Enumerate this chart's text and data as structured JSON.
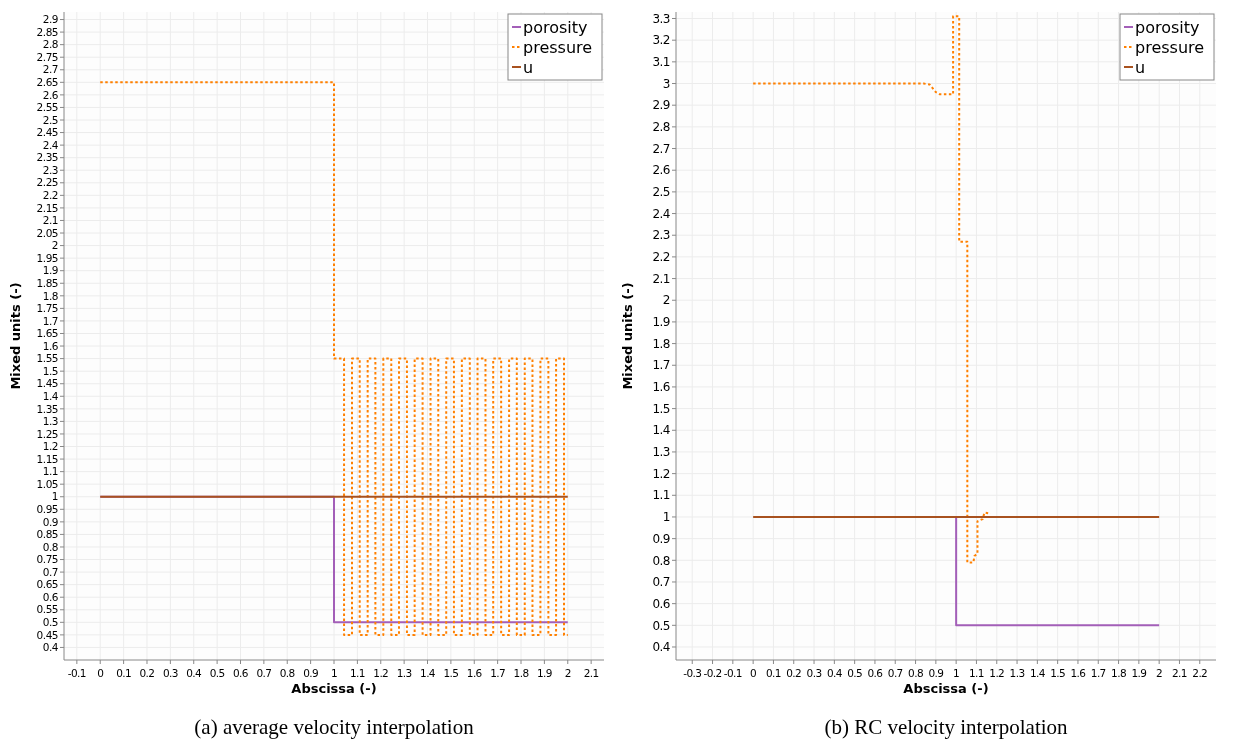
{
  "chart_data": [
    {
      "type": "line",
      "title": "(a) average velocity interpolation",
      "xlabel": "Abscissa (-)",
      "ylabel": "Mixed units (-)",
      "xlim": [
        -0.155,
        2.155
      ],
      "ylim": [
        0.35,
        2.93
      ],
      "xticks": [
        -0.1,
        0,
        0.1,
        0.2,
        0.3,
        0.4,
        0.5,
        0.6,
        0.7,
        0.8,
        0.9,
        1,
        1.1,
        1.2,
        1.3,
        1.4,
        1.5,
        1.6,
        1.7,
        1.8,
        1.9,
        2,
        2.1
      ],
      "yticks": [
        0.4,
        0.45,
        0.5,
        0.55,
        0.6,
        0.65,
        0.7,
        0.75,
        0.8,
        0.85,
        0.9,
        0.95,
        1,
        1.05,
        1.1,
        1.15,
        1.2,
        1.25,
        1.3,
        1.35,
        1.4,
        1.45,
        1.5,
        1.55,
        1.6,
        1.65,
        1.7,
        1.75,
        1.8,
        1.85,
        1.9,
        1.95,
        2,
        2.05,
        2.1,
        2.15,
        2.2,
        2.25,
        2.3,
        2.35,
        2.4,
        2.45,
        2.5,
        2.55,
        2.6,
        2.65,
        2.7,
        2.75,
        2.8,
        2.85,
        2.9
      ],
      "grid": true,
      "legend": "top right",
      "series": [
        {
          "name": "porosity",
          "color": "#a35fb8",
          "line_style": "solid",
          "x": [
            0,
            1,
            1,
            2
          ],
          "values": [
            1,
            1,
            0.5,
            0.5
          ]
        },
        {
          "name": "pressure",
          "color": "#ff8000",
          "line_style": "dotted",
          "x": [
            0,
            1,
            1,
            1.043,
            1.043,
            1.077,
            1.077,
            1.11,
            1.11,
            1.144,
            1.144,
            1.177,
            1.177,
            1.211,
            1.211,
            1.245,
            1.245,
            1.278,
            1.278,
            1.312,
            1.312,
            1.345,
            1.345,
            1.379,
            1.379,
            1.413,
            1.413,
            1.446,
            1.446,
            1.48,
            1.48,
            1.513,
            1.513,
            1.547,
            1.547,
            1.581,
            1.581,
            1.614,
            1.614,
            1.648,
            1.648,
            1.681,
            1.681,
            1.715,
            1.715,
            1.749,
            1.749,
            1.782,
            1.782,
            1.816,
            1.816,
            1.849,
            1.849,
            1.883,
            1.883,
            1.917,
            1.917,
            1.95,
            1.95,
            1.984,
            1.984,
            2.0
          ],
          "values": [
            2.65,
            2.65,
            1.55,
            1.55,
            0.45,
            0.45,
            1.55,
            1.55,
            0.45,
            0.45,
            1.55,
            1.55,
            0.45,
            0.45,
            1.55,
            1.55,
            0.45,
            0.45,
            1.55,
            1.55,
            0.45,
            0.45,
            1.55,
            1.55,
            0.45,
            0.45,
            1.55,
            1.55,
            0.45,
            0.45,
            1.55,
            1.55,
            0.45,
            0.45,
            1.55,
            1.55,
            0.45,
            0.45,
            1.55,
            1.55,
            0.45,
            0.45,
            1.55,
            1.55,
            0.45,
            0.45,
            1.55,
            1.55,
            0.45,
            0.45,
            1.55,
            1.55,
            0.45,
            0.45,
            1.55,
            1.55,
            0.45,
            0.45,
            1.55,
            1.55,
            0.45,
            0.45
          ]
        },
        {
          "name": "u",
          "color": "#a8521f",
          "line_style": "solid",
          "x": [
            0,
            2
          ],
          "values": [
            1,
            1
          ]
        }
      ]
    },
    {
      "type": "line",
      "title": "(b) RC velocity interpolation",
      "xlabel": "Abscissa (-)",
      "ylabel": "Mixed units (-)",
      "xlim": [
        -0.38,
        2.28
      ],
      "ylim": [
        0.34,
        3.33
      ],
      "xticks": [
        -0.3,
        -0.2,
        -0.1,
        0,
        0.1,
        0.2,
        0.3,
        0.4,
        0.5,
        0.6,
        0.7,
        0.8,
        0.9,
        1,
        1.1,
        1.2,
        1.3,
        1.4,
        1.5,
        1.6,
        1.7,
        1.8,
        1.9,
        2,
        2.1,
        2.2
      ],
      "yticks": [
        0.4,
        0.5,
        0.6,
        0.7,
        0.8,
        0.9,
        1,
        1.1,
        1.2,
        1.3,
        1.4,
        1.5,
        1.6,
        1.7,
        1.8,
        1.9,
        2,
        2.1,
        2.2,
        2.3,
        2.4,
        2.5,
        2.6,
        2.7,
        2.8,
        2.9,
        3,
        3.1,
        3.2,
        3.3
      ],
      "grid": true,
      "legend": "top right",
      "series": [
        {
          "name": "porosity",
          "color": "#a35fb8",
          "line_style": "solid",
          "x": [
            1,
            1,
            2
          ],
          "values": [
            1,
            0.5,
            0.5
          ]
        },
        {
          "name": "pressure",
          "color": "#ff8000",
          "line_style": "dotted",
          "x": [
            0,
            0.84,
            0.87,
            0.9,
            0.92,
            0.985,
            0.985,
            1.015,
            1.015,
            1.055,
            1.055,
            1.085,
            1.09,
            1.105,
            1.105,
            1.13,
            1.14,
            1.17
          ],
          "values": [
            3.0,
            3.0,
            2.995,
            2.96,
            2.95,
            2.95,
            3.31,
            3.31,
            2.27,
            2.27,
            0.79,
            0.79,
            0.82,
            0.83,
            0.98,
            0.99,
            1.02,
            1.015
          ]
        },
        {
          "name": "u",
          "color": "#a8521f",
          "line_style": "solid",
          "x": [
            0,
            2
          ],
          "values": [
            1,
            1
          ]
        }
      ]
    }
  ]
}
